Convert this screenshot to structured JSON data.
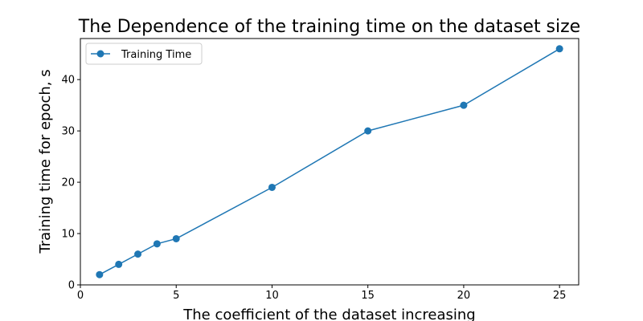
{
  "chart_data": {
    "type": "line",
    "title": "The Dependence of the training time on the dataset size",
    "xlabel": "The coefficient of the dataset increasing",
    "ylabel": "Training time for epoch, s",
    "xlim": [
      0,
      26
    ],
    "ylim": [
      0,
      48
    ],
    "xticks": [
      0,
      5,
      10,
      15,
      20,
      25
    ],
    "yticks": [
      0,
      10,
      20,
      30,
      40
    ],
    "grid": false,
    "legend_position": "top-left",
    "series": [
      {
        "name": "Training Time",
        "color": "#1f77b4",
        "marker": "circle",
        "x": [
          1,
          2,
          3,
          4,
          5,
          10,
          15,
          20,
          25
        ],
        "y": [
          2,
          4,
          6,
          8,
          9,
          19,
          30,
          35,
          46
        ]
      }
    ]
  }
}
